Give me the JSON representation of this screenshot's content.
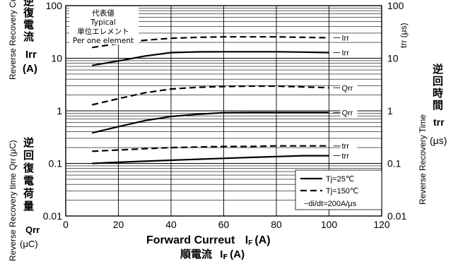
{
  "chart_data": {
    "type": "line",
    "x_label": "Forward Curreut",
    "x_label_symbol": "I",
    "x_label_sub": "F",
    "x_label_unit": "(A)",
    "x_label_jp": "順電流",
    "x_label_jp_symbol": "I",
    "x_label_jp_sub": "F",
    "x_label_jp_unit": "(A)",
    "x_ticks": [
      "0",
      "20",
      "40",
      "60",
      "80",
      "100",
      "120"
    ],
    "xlim": [
      0,
      120
    ],
    "left_y_ticks": [
      "100",
      "10",
      "1",
      "0.1",
      "0.01"
    ],
    "right_y_ticks": [
      "100",
      "10",
      "1",
      "0.1",
      "0.01"
    ],
    "ylim": [
      0.01,
      100
    ],
    "y_scale": "log",
    "left_axis_top": {
      "rotated_label": "Reverse Recovery Current",
      "jp_chars": [
        "逆",
        "復",
        "電",
        "流"
      ],
      "symbol": "Irr",
      "unit": "(A)"
    },
    "left_axis_bottom": {
      "rotated_label": "Reverse Recovery time",
      "rotated_symbol": "Qrr",
      "rotated_unit": "(μC)",
      "jp_chars": [
        "逆",
        "回",
        "復",
        "電",
        "荷",
        "量"
      ],
      "symbol": "Qrr",
      "unit": "(μC)"
    },
    "right_axis": {
      "rotated_label": "Reverse Recovery Time",
      "rotated_unit_label": "trr (μs)",
      "top_unit": "trr (μs)",
      "jp_chars": [
        "逆",
        "回",
        "時",
        "間"
      ],
      "symbol": "trr",
      "unit": "(μs)"
    },
    "annotation": [
      "代表値",
      "Typical",
      "単位エレメント",
      "Per one element"
    ],
    "legend": {
      "position": "bottom-right",
      "entries": [
        {
          "style": "solid",
          "label": "Tj=25℃"
        },
        {
          "style": "dashed",
          "label": "Tj=150℃"
        }
      ],
      "note": "−di/dt=200A/μs"
    },
    "series": [
      {
        "name": "Irr",
        "style": "dashed",
        "x": [
          10,
          20,
          30,
          40,
          50,
          60,
          70,
          80,
          90,
          100
        ],
        "y": [
          16,
          19,
          22,
          24,
          25,
          25.5,
          25.5,
          25.5,
          25,
          24.5
        ]
      },
      {
        "name": "Irr",
        "style": "solid",
        "x": [
          10,
          20,
          30,
          40,
          50,
          60,
          70,
          80,
          90,
          100
        ],
        "y": [
          7.3,
          8.9,
          11,
          12.8,
          13.2,
          13.3,
          13.3,
          13.3,
          13.1,
          12.8
        ]
      },
      {
        "name": "Qrr",
        "style": "dashed",
        "x": [
          10,
          20,
          30,
          40,
          50,
          60,
          70,
          80,
          90,
          100
        ],
        "y": [
          1.3,
          1.7,
          2.2,
          2.6,
          2.8,
          2.9,
          2.95,
          2.95,
          2.85,
          2.75
        ]
      },
      {
        "name": "Qrr",
        "style": "solid",
        "x": [
          10,
          20,
          30,
          40,
          50,
          60,
          70,
          80,
          90,
          100
        ],
        "y": [
          0.38,
          0.5,
          0.65,
          0.78,
          0.86,
          0.92,
          0.93,
          0.93,
          0.93,
          0.93
        ]
      },
      {
        "name": "trr",
        "style": "dashed",
        "x": [
          10,
          20,
          30,
          40,
          50,
          60,
          70,
          80,
          90,
          100
        ],
        "y": [
          0.17,
          0.18,
          0.19,
          0.2,
          0.205,
          0.21,
          0.21,
          0.215,
          0.215,
          0.215
        ]
      },
      {
        "name": "trr",
        "style": "solid",
        "x": [
          10,
          20,
          30,
          40,
          50,
          60,
          70,
          80,
          90,
          100
        ],
        "y": [
          0.1,
          0.105,
          0.11,
          0.115,
          0.12,
          0.125,
          0.13,
          0.135,
          0.14,
          0.14
        ]
      }
    ]
  }
}
